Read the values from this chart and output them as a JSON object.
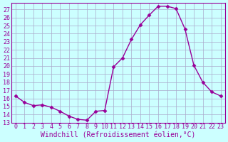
{
  "x": [
    0,
    1,
    2,
    3,
    4,
    5,
    6,
    7,
    8,
    9,
    10,
    11,
    12,
    13,
    14,
    15,
    16,
    17,
    18,
    19,
    20,
    21,
    22,
    23
  ],
  "y": [
    16.3,
    15.5,
    15.1,
    15.2,
    14.9,
    14.4,
    13.8,
    13.4,
    13.3,
    14.4,
    14.5,
    19.9,
    21.0,
    23.3,
    25.1,
    26.3,
    27.4,
    27.4,
    27.1,
    24.6,
    20.1,
    18.0,
    16.8,
    16.3
  ],
  "line_color": "#990099",
  "marker_color": "#990099",
  "bg_color": "#ccffff",
  "grid_color": "#aaaacc",
  "xlabel": "Windchill (Refroidissement éolien,°C)",
  "ylabel_ticks": [
    13,
    14,
    15,
    16,
    17,
    18,
    19,
    20,
    21,
    22,
    23,
    24,
    25,
    26,
    27
  ],
  "ylim": [
    13,
    27.8
  ],
  "xlim": [
    -0.5,
    23.5
  ],
  "xlabel_fontsize": 7,
  "tick_fontsize": 6
}
